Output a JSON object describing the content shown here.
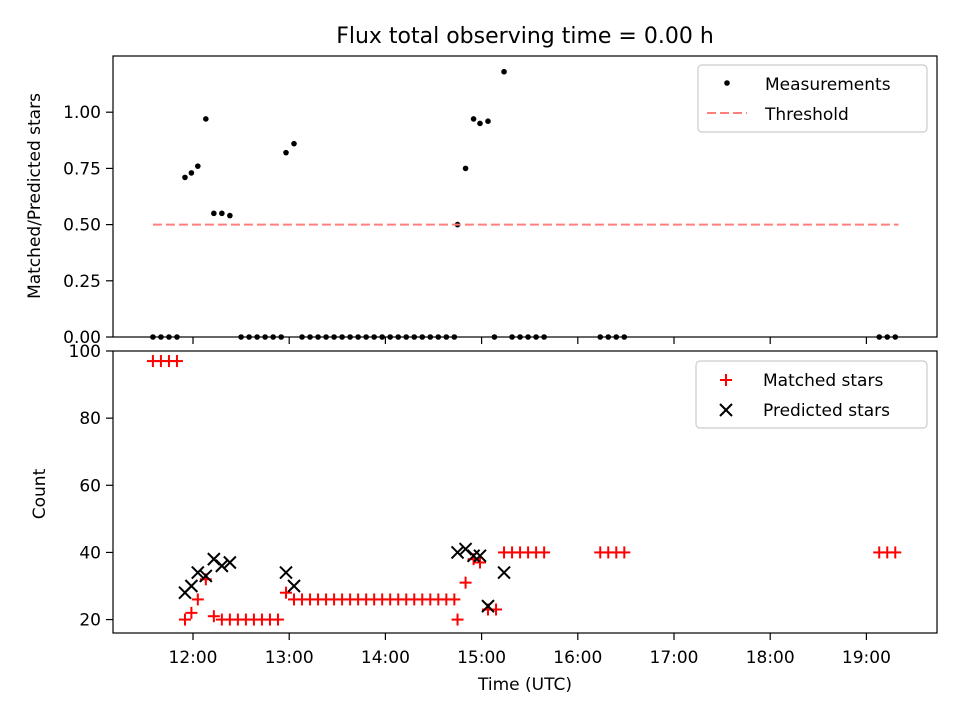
{
  "chart_data": [
    {
      "type": "scatter",
      "title": "Flux total observing time = 0.00 h",
      "xlabel": "",
      "ylabel": "Matched/Predicted stars",
      "ylim": [
        0,
        1.25
      ],
      "yticks": [
        "0.00",
        "0.25",
        "0.50",
        "0.75",
        "1.00"
      ],
      "xticks": [
        "12:00",
        "13:00",
        "14:00",
        "15:00",
        "16:00",
        "17:00",
        "18:00",
        "19:00"
      ],
      "legend_position": "top-right",
      "series": [
        {
          "name": "Measurements",
          "style": "dot",
          "color": "#000000",
          "points": [
            [
              "11:35",
              0
            ],
            [
              "11:40",
              0
            ],
            [
              "11:45",
              0
            ],
            [
              "11:50",
              0
            ],
            [
              "11:55",
              0.71
            ],
            [
              "11:59",
              0.73
            ],
            [
              "12:03",
              0.76
            ],
            [
              "12:08",
              0.97
            ],
            [
              "12:13",
              0.55
            ],
            [
              "12:18",
              0.55
            ],
            [
              "12:23",
              0.54
            ],
            [
              "12:30",
              0
            ],
            [
              "12:35",
              0
            ],
            [
              "12:40",
              0
            ],
            [
              "12:45",
              0
            ],
            [
              "12:50",
              0
            ],
            [
              "12:55",
              0
            ],
            [
              "12:58",
              0.82
            ],
            [
              "13:03",
              0.86
            ],
            [
              "13:08",
              0
            ],
            [
              "13:13",
              0
            ],
            [
              "13:18",
              0
            ],
            [
              "13:23",
              0
            ],
            [
              "13:28",
              0
            ],
            [
              "13:33",
              0
            ],
            [
              "13:38",
              0
            ],
            [
              "13:43",
              0
            ],
            [
              "13:48",
              0
            ],
            [
              "13:53",
              0
            ],
            [
              "13:58",
              0
            ],
            [
              "14:03",
              0
            ],
            [
              "14:08",
              0
            ],
            [
              "14:13",
              0
            ],
            [
              "14:18",
              0
            ],
            [
              "14:23",
              0
            ],
            [
              "14:28",
              0
            ],
            [
              "14:33",
              0
            ],
            [
              "14:38",
              0
            ],
            [
              "14:43",
              0
            ],
            [
              "14:45",
              0.5
            ],
            [
              "14:50",
              0.75
            ],
            [
              "14:55",
              0.97
            ],
            [
              "14:59",
              0.95
            ],
            [
              "15:04",
              0.96
            ],
            [
              "15:08",
              0
            ],
            [
              "15:14",
              1.18
            ],
            [
              "15:19",
              0
            ],
            [
              "15:24",
              0
            ],
            [
              "15:29",
              0
            ],
            [
              "15:34",
              0
            ],
            [
              "15:39",
              0
            ],
            [
              "16:14",
              0
            ],
            [
              "16:19",
              0
            ],
            [
              "16:24",
              0
            ],
            [
              "16:29",
              0
            ],
            [
              "19:08",
              0
            ],
            [
              "19:13",
              0
            ],
            [
              "19:18",
              0
            ]
          ]
        },
        {
          "name": "Threshold",
          "style": "dashed-line",
          "color": "#ff7f7f",
          "points": [
            [
              "11:35",
              0.5
            ],
            [
              "19:20",
              0.5
            ]
          ]
        }
      ]
    },
    {
      "type": "scatter",
      "title": "",
      "xlabel": "Time (UTC)",
      "ylabel": "Count",
      "ylim": [
        16,
        100
      ],
      "yticks": [
        "20",
        "40",
        "60",
        "80",
        "100"
      ],
      "xticks": [
        "12:00",
        "13:00",
        "14:00",
        "15:00",
        "16:00",
        "17:00",
        "18:00",
        "19:00"
      ],
      "legend_position": "top-right",
      "series": [
        {
          "name": "Matched stars",
          "style": "plus",
          "color": "#ff0000",
          "points": [
            [
              "11:35",
              97
            ],
            [
              "11:40",
              97
            ],
            [
              "11:45",
              97
            ],
            [
              "11:50",
              97
            ],
            [
              "11:55",
              20
            ],
            [
              "11:59",
              22
            ],
            [
              "12:03",
              26
            ],
            [
              "12:08",
              32
            ],
            [
              "12:13",
              21
            ],
            [
              "12:18",
              20
            ],
            [
              "12:23",
              20
            ],
            [
              "12:28",
              20
            ],
            [
              "12:33",
              20
            ],
            [
              "12:38",
              20
            ],
            [
              "12:43",
              20
            ],
            [
              "12:48",
              20
            ],
            [
              "12:53",
              20
            ],
            [
              "12:58",
              28
            ],
            [
              "13:03",
              26
            ],
            [
              "13:08",
              26
            ],
            [
              "13:13",
              26
            ],
            [
              "13:18",
              26
            ],
            [
              "13:23",
              26
            ],
            [
              "13:28",
              26
            ],
            [
              "13:33",
              26
            ],
            [
              "13:38",
              26
            ],
            [
              "13:43",
              26
            ],
            [
              "13:48",
              26
            ],
            [
              "13:53",
              26
            ],
            [
              "13:58",
              26
            ],
            [
              "14:03",
              26
            ],
            [
              "14:08",
              26
            ],
            [
              "14:13",
              26
            ],
            [
              "14:18",
              26
            ],
            [
              "14:23",
              26
            ],
            [
              "14:28",
              26
            ],
            [
              "14:33",
              26
            ],
            [
              "14:38",
              26
            ],
            [
              "14:43",
              26
            ],
            [
              "14:45",
              20
            ],
            [
              "14:50",
              31
            ],
            [
              "14:55",
              38
            ],
            [
              "14:59",
              37
            ],
            [
              "15:04",
              23
            ],
            [
              "15:09",
              23
            ],
            [
              "15:14",
              40
            ],
            [
              "15:19",
              40
            ],
            [
              "15:24",
              40
            ],
            [
              "15:29",
              40
            ],
            [
              "15:34",
              40
            ],
            [
              "15:39",
              40
            ],
            [
              "16:14",
              40
            ],
            [
              "16:19",
              40
            ],
            [
              "16:24",
              40
            ],
            [
              "16:29",
              40
            ],
            [
              "19:08",
              40
            ],
            [
              "19:13",
              40
            ],
            [
              "19:18",
              40
            ]
          ]
        },
        {
          "name": "Predicted stars",
          "style": "x",
          "color": "#000000",
          "points": [
            [
              "11:55",
              28
            ],
            [
              "11:59",
              30
            ],
            [
              "12:03",
              34
            ],
            [
              "12:08",
              33
            ],
            [
              "12:13",
              38
            ],
            [
              "12:18",
              36
            ],
            [
              "12:23",
              37
            ],
            [
              "12:58",
              34
            ],
            [
              "13:03",
              30
            ],
            [
              "14:45",
              40
            ],
            [
              "14:50",
              41
            ],
            [
              "14:55",
              39
            ],
            [
              "14:59",
              39
            ],
            [
              "15:04",
              24
            ],
            [
              "15:14",
              34
            ]
          ]
        }
      ]
    }
  ]
}
